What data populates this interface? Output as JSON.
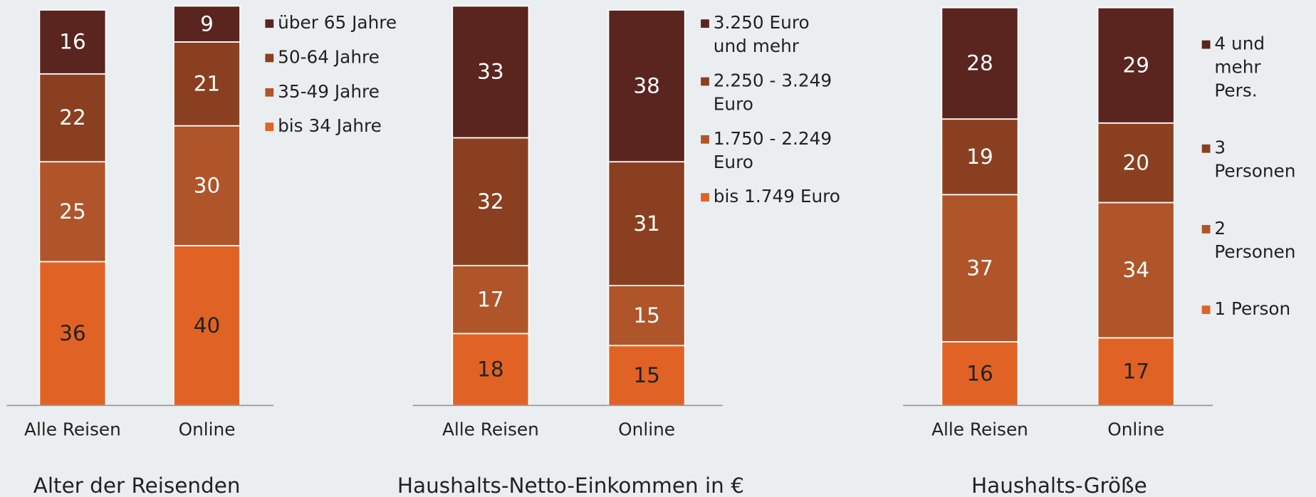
{
  "chart_data": [
    {
      "type": "bar",
      "stacked": true,
      "title": "Alter der Reisenden",
      "categories": [
        "Alle Reisen",
        "Online"
      ],
      "ylim": [
        0,
        100
      ],
      "series": [
        {
          "name": "bis 34 Jahre",
          "color": "#e06325",
          "values": [
            36,
            40
          ]
        },
        {
          "name": "35-49 Jahre",
          "color": "#b0542a",
          "values": [
            25,
            30
          ]
        },
        {
          "name": "50-64 Jahre",
          "color": "#8a4020",
          "values": [
            22,
            21
          ]
        },
        {
          "name": "über 65 Jahre",
          "color": "#5a241f",
          "values": [
            16,
            9
          ]
        }
      ]
    },
    {
      "type": "bar",
      "stacked": true,
      "title": "Haushalts-Netto-Einkommen in €",
      "categories": [
        "Alle Reisen",
        "Online"
      ],
      "ylim": [
        0,
        100
      ],
      "series": [
        {
          "name": "bis 1.749 Euro",
          "color": "#e06325",
          "values": [
            18,
            15
          ]
        },
        {
          "name": "1.750 - 2.249 Euro",
          "color": "#b0542a",
          "values": [
            17,
            15
          ]
        },
        {
          "name": "2.250 - 3.249 Euro",
          "color": "#8a4020",
          "values": [
            32,
            31
          ]
        },
        {
          "name": "3.250 Euro und mehr",
          "color": "#5a241f",
          "values": [
            33,
            38
          ]
        }
      ]
    },
    {
      "type": "bar",
      "stacked": true,
      "title": "Haushalts-Größe",
      "categories": [
        "Alle Reisen",
        "Online"
      ],
      "ylim": [
        0,
        100
      ],
      "series": [
        {
          "name": "1 Person",
          "color": "#e06325",
          "values": [
            16,
            17
          ]
        },
        {
          "name": "2 Personen",
          "color": "#b0542a",
          "values": [
            37,
            34
          ]
        },
        {
          "name": "3 Personen",
          "color": "#8a4020",
          "values": [
            19,
            20
          ]
        },
        {
          "name": "4 und mehr Pers.",
          "color": "#5a241f",
          "values": [
            28,
            29
          ]
        }
      ]
    }
  ]
}
